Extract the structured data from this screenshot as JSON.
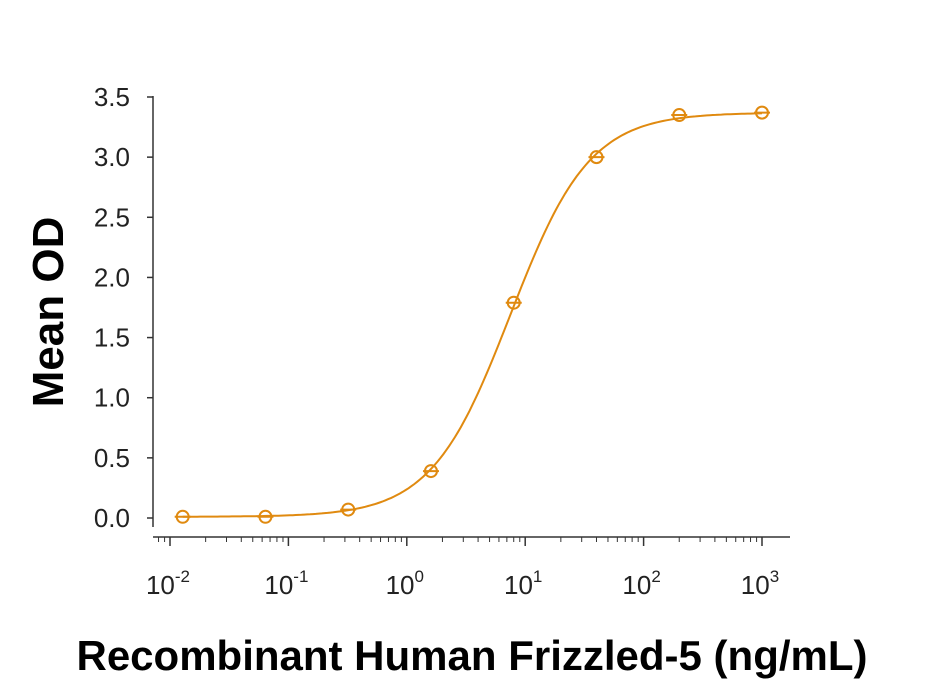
{
  "chart_data": {
    "type": "scatter",
    "title": "",
    "xlabel": "Recombinant Human Frizzled-5 (ng/mL)",
    "ylabel": "Mean OD",
    "x_scale": "log",
    "xlim": [
      0.008,
      1000
    ],
    "ylim": [
      0,
      3.5
    ],
    "x_ticks": [
      {
        "base": "10",
        "exp": "-2",
        "value": 0.01
      },
      {
        "base": "10",
        "exp": "-1",
        "value": 0.1
      },
      {
        "base": "10",
        "exp": "0",
        "value": 1
      },
      {
        "base": "10",
        "exp": "1",
        "value": 10
      },
      {
        "base": "10",
        "exp": "2",
        "value": 100
      },
      {
        "base": "10",
        "exp": "3",
        "value": 1000
      }
    ],
    "y_ticks": [
      "0.0",
      "0.5",
      "1.0",
      "1.5",
      "2.0",
      "2.5",
      "3.0",
      "3.5"
    ],
    "grid": false,
    "color": "#E08A10",
    "series": [
      {
        "x": [
          0.0128,
          0.064,
          0.32,
          1.6,
          8,
          40,
          200,
          1000
        ],
        "y": [
          0.01,
          0.01,
          0.07,
          0.39,
          1.79,
          3.0,
          3.35,
          3.37
        ]
      }
    ]
  }
}
